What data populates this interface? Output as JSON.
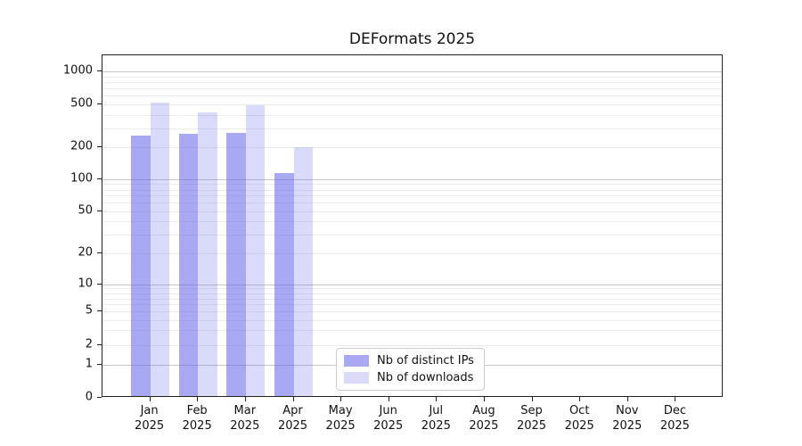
{
  "title": "DEFormats 2025",
  "chart_data": {
    "type": "bar",
    "title": "DEFormats 2025",
    "categories": [
      "Jan 2025",
      "Feb 2025",
      "Mar 2025",
      "Apr 2025",
      "May 2025",
      "Jun 2025",
      "Jul 2025",
      "Aug 2025",
      "Sep 2025",
      "Oct 2025",
      "Nov 2025",
      "Dec 2025"
    ],
    "series": [
      {
        "name": "Nb of distinct IPs",
        "color": "rgba(99,99,233,0.55)",
        "values": [
          250,
          260,
          263,
          110,
          null,
          null,
          null,
          null,
          null,
          null,
          null,
          null
        ]
      },
      {
        "name": "Nb of downloads",
        "color": "rgba(99,99,233,0.24)",
        "values": [
          500,
          405,
          470,
          195,
          null,
          null,
          null,
          null,
          null,
          null,
          null,
          null
        ]
      }
    ],
    "y_ticks": [
      0,
      1,
      2,
      5,
      10,
      20,
      50,
      100,
      200,
      500,
      1000
    ],
    "ylim": [
      0,
      1400
    ],
    "yscale": "log-with-zero-baseline",
    "xlabel": "",
    "ylabel": "",
    "grid": "horizontal minor+major",
    "legend_position": "lower center inside plot",
    "colors": {
      "minor_grid": "#ebebeb",
      "major_grid": "#c6c6c6",
      "axis": "#222222",
      "text": "#111111"
    }
  }
}
